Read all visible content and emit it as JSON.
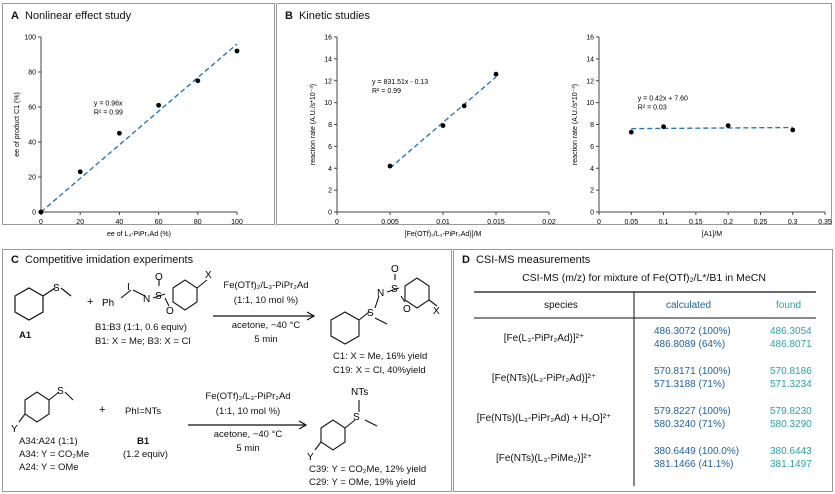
{
  "panelA": {
    "letter": "A",
    "title": "Nonlinear effect study",
    "chart_data": {
      "type": "scatter",
      "x": [
        0,
        20,
        40,
        60,
        80,
        100
      ],
      "y": [
        0,
        23,
        45,
        61,
        75,
        92
      ],
      "xlim": [
        0,
        100
      ],
      "ylim": [
        0,
        100
      ],
      "xticks": [
        "0",
        "20",
        "40",
        "60",
        "80",
        "100"
      ],
      "yticks": [
        "0",
        "20",
        "40",
        "60",
        "80",
        "100"
      ],
      "xlabel": "ee of L₃-PiPr₂Ad (%)",
      "ylabel": "ee of product C1 (%)",
      "fit": {
        "slope": 0.96,
        "intercept": 0
      },
      "annotation": [
        "y = 0.96x",
        "R² = 0.99"
      ]
    }
  },
  "panelB": {
    "letter": "B",
    "title": "Kinetic studies",
    "left_chart": {
      "type": "scatter",
      "x": [
        0.005,
        0.01,
        0.012,
        0.015
      ],
      "y": [
        4.2,
        7.9,
        9.7,
        12.6
      ],
      "xlim": [
        0,
        0.02
      ],
      "ylim": [
        0,
        16
      ],
      "xticks": [
        "0",
        "0.005",
        "0.01",
        "0.015",
        "0.02"
      ],
      "yticks": [
        "0",
        "2",
        "4",
        "6",
        "8",
        "10",
        "12",
        "14",
        "16"
      ],
      "xlabel": "[Fe(OTf)₂/L₃-PiPr₂Ad)]/M",
      "ylabel": "reaction rate (A.U./s*10⁻³)",
      "fit": {
        "slope": 831.51,
        "intercept": -0.13
      },
      "annotation": [
        "y = 831.51x - 0.13",
        "R² = 0.99"
      ]
    },
    "right_chart": {
      "type": "scatter",
      "x": [
        0.05,
        0.1,
        0.2,
        0.3
      ],
      "y": [
        7.3,
        7.8,
        7.9,
        7.5
      ],
      "xlim": [
        0,
        0.35
      ],
      "ylim": [
        0,
        16
      ],
      "xticks": [
        "0",
        "0.05",
        "0.1",
        "0.15",
        "0.2",
        "0.25",
        "0.3",
        "0.35"
      ],
      "yticks": [
        "0",
        "2",
        "4",
        "6",
        "8",
        "10",
        "12",
        "14",
        "16"
      ],
      "xlabel": "[A1]/M",
      "ylabel": "reaction rate (A.U./s*10⁻³)",
      "fit": {
        "slope": 0.42,
        "intercept": 7.6
      },
      "annotation": [
        "y = 0.42x + 7.60",
        "R² = 0.03"
      ]
    }
  },
  "panelC": {
    "letter": "C",
    "title": "Competitive imidation experiments",
    "r1": {
      "a1_label": "A1",
      "plus": "+",
      "reagent_label": "B1:B3 (1:1, 0.6 equiv)",
      "reagent_def": "B1: X = Me; B3: X = Cl",
      "cond1": "Fe(OTf)₂/L₃-PiPr₂Ad",
      "cond2": "(1:1, 10 mol %)",
      "cond3": "acetone, −40 °C",
      "cond4": "5 min",
      "prod1": "C1: X = Me, 16% yield",
      "prod2": "C19: X = Cl,  40%yield",
      "x_label": "X",
      "ph": "Ph",
      "i": "I",
      "n": "N",
      "s": "S",
      "o": "O"
    },
    "r2": {
      "sub_label": "A34:A24 (1:1)",
      "sub_def1": "A34: Y = CO₂Me",
      "sub_def2": "A24: Y = OMe",
      "plus": "+",
      "reagent": "PhI=NTs",
      "reagent_label": "B1",
      "reagent_equiv": "(1.2 equiv)",
      "cond1": "Fe(OTf)₂/L₃-PiPr₂Ad",
      "cond2": "(1:1, 10 mol %)",
      "cond3": "acetone, −40 °C",
      "cond4": "5 min",
      "prod1": "C39: Y = CO₂Me, 12% yield",
      "prod2": "C29: Y = OMe, 19% yield",
      "nts": "NTs",
      "y_label": "Y"
    }
  },
  "panelD": {
    "letter": "D",
    "title": "CSI-MS measurements",
    "caption": "CSI-MS (m/z) for mixture of Fe(OTf)₂/L*/B1 in MeCN",
    "headers": [
      "species",
      "calculated",
      "found"
    ],
    "rows": [
      {
        "species": "[Fe(L₃-PiPr₂Ad)]²⁺",
        "calc": [
          "486.3072 (100%)",
          "486.8089 (64%)"
        ],
        "found": [
          "486.3054",
          "486.8071"
        ]
      },
      {
        "species": "[Fe(NTs)(L₃-PiPr₂Ad)]²⁺",
        "calc": [
          "570.8171 (100%)",
          "571.3188 (71%)"
        ],
        "found": [
          "570.8186",
          "571.3234"
        ]
      },
      {
        "species": "[Fe(NTs)(L₃-PiPr₂Ad) + H₂O]²⁺",
        "calc": [
          "579.8227 (100%)",
          "580.3240 (71%)"
        ],
        "found": [
          "579.8230",
          "580.3290"
        ]
      },
      {
        "species": "[Fe(NTs)(L₃-PiMe₂)]²⁺",
        "calc": [
          "380.6449 (100.0%)",
          "381.1466 (41.1%)"
        ],
        "found": [
          "380.6443",
          "381.1497"
        ]
      }
    ]
  },
  "colors": {
    "fit_line": "#2e75b6",
    "calc": "#1f5fa8",
    "found": "#2aa3a3"
  }
}
